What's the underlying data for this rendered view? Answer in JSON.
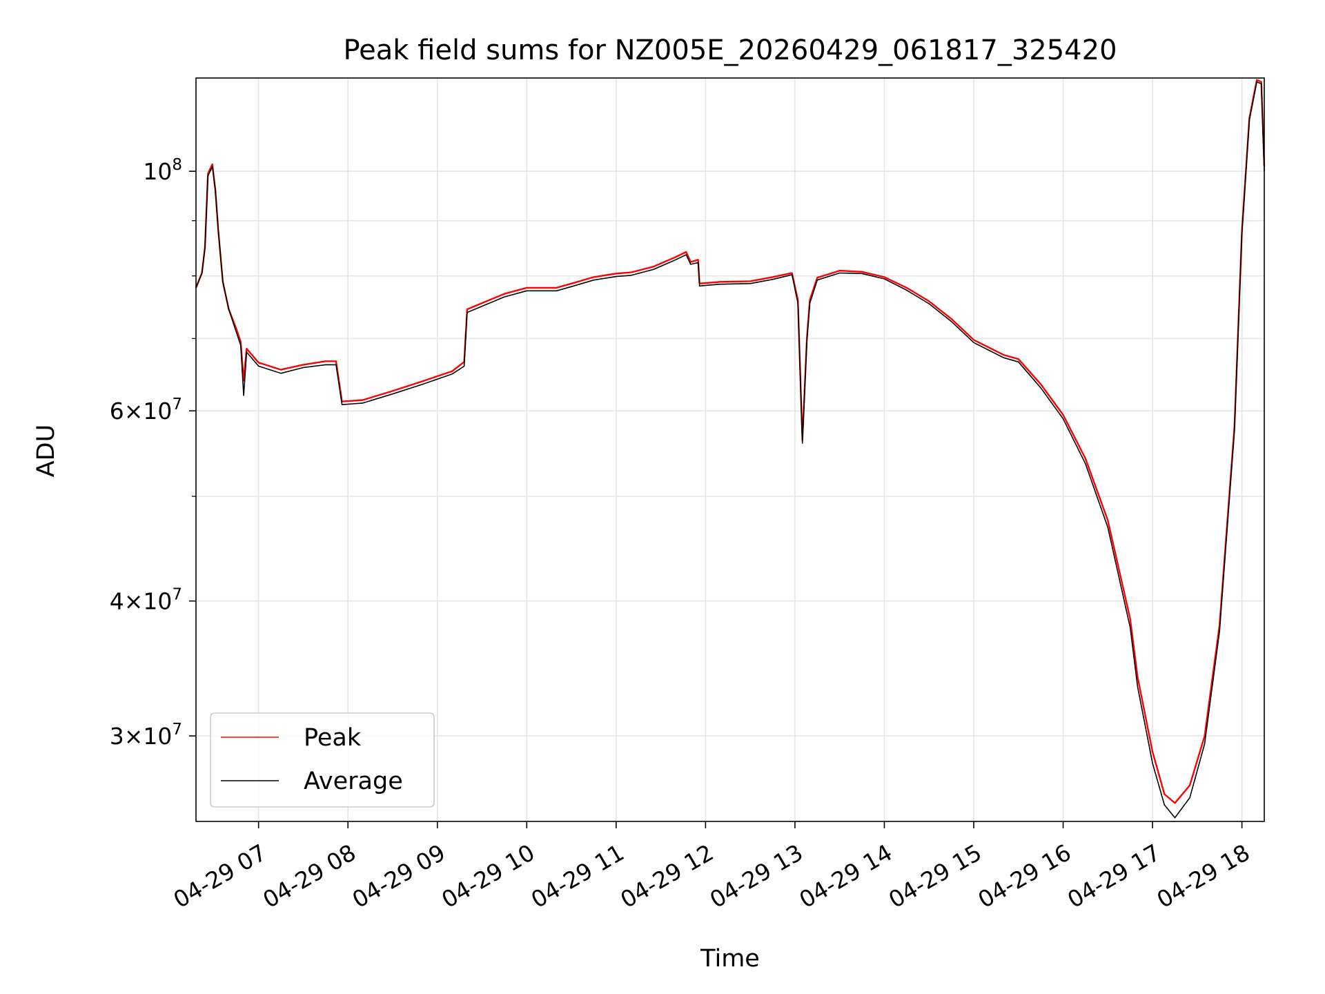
{
  "chart_data": {
    "type": "line",
    "title": "Peak field sums for NZ005E_20260429_061817_325420",
    "xlabel": "Time",
    "ylabel": "ADU",
    "y_scale": "log",
    "grid": true,
    "legend_placement": "lower-left",
    "xlim": [
      "2026-04-29 06:18",
      "2026-04-29 18:15"
    ],
    "ylim": [
      25000000,
      122000000
    ],
    "x_ticks": [
      "04-29 07",
      "04-29 08",
      "04-29 09",
      "04-29 10",
      "04-29 11",
      "04-29 12",
      "04-29 13",
      "04-29 14",
      "04-29 15",
      "04-29 16",
      "04-29 17",
      "04-29 18"
    ],
    "y_ticks": [
      {
        "value": 100000000,
        "mantissa": "",
        "exp": "8"
      },
      {
        "value": 60000000,
        "mantissa": "6",
        "exp": "7"
      },
      {
        "value": 40000000,
        "mantissa": "4",
        "exp": "7"
      },
      {
        "value": 30000000,
        "mantissa": "3",
        "exp": "7"
      }
    ],
    "y_minor_ticks": [
      50000000,
      70000000,
      80000000,
      90000000
    ],
    "series": [
      {
        "name": "Peak",
        "color": "#ff0000",
        "points": [
          [
            "2026-04-29 06:18",
            78000000
          ],
          [
            "2026-04-29 06:22",
            80500000
          ],
          [
            "2026-04-29 06:24",
            85000000
          ],
          [
            "2026-04-29 06:26",
            99500000
          ],
          [
            "2026-04-29 06:29",
            101500000
          ],
          [
            "2026-04-29 06:31",
            96000000
          ],
          [
            "2026-04-29 06:33",
            88000000
          ],
          [
            "2026-04-29 06:36",
            79000000
          ],
          [
            "2026-04-29 06:40",
            74500000
          ],
          [
            "2026-04-29 06:45",
            71500000
          ],
          [
            "2026-04-29 06:48",
            69500000
          ],
          [
            "2026-04-29 06:50",
            64000000
          ],
          [
            "2026-04-29 06:52",
            68500000
          ],
          [
            "2026-04-29 07:00",
            66500000
          ],
          [
            "2026-04-29 07:15",
            65500000
          ],
          [
            "2026-04-29 07:30",
            66200000
          ],
          [
            "2026-04-29 07:45",
            66700000
          ],
          [
            "2026-04-29 07:52",
            66700000
          ],
          [
            "2026-04-29 07:56",
            61200000
          ],
          [
            "2026-04-29 08:10",
            61400000
          ],
          [
            "2026-04-29 08:30",
            62600000
          ],
          [
            "2026-04-29 08:50",
            63900000
          ],
          [
            "2026-04-29 09:10",
            65300000
          ],
          [
            "2026-04-29 09:18",
            66600000
          ],
          [
            "2026-04-29 09:20",
            74500000
          ],
          [
            "2026-04-29 09:30",
            75500000
          ],
          [
            "2026-04-29 09:45",
            77000000
          ],
          [
            "2026-04-29 10:00",
            78000000
          ],
          [
            "2026-04-29 10:20",
            78000000
          ],
          [
            "2026-04-29 10:30",
            78700000
          ],
          [
            "2026-04-29 10:45",
            79800000
          ],
          [
            "2026-04-29 11:00",
            80400000
          ],
          [
            "2026-04-29 11:10",
            80600000
          ],
          [
            "2026-04-29 11:25",
            81600000
          ],
          [
            "2026-04-29 11:40",
            83300000
          ],
          [
            "2026-04-29 11:47",
            84200000
          ],
          [
            "2026-04-29 11:50",
            82400000
          ],
          [
            "2026-04-29 11:55",
            82800000
          ],
          [
            "2026-04-29 11:56",
            78700000
          ],
          [
            "2026-04-29 12:10",
            79000000
          ],
          [
            "2026-04-29 12:30",
            79100000
          ],
          [
            "2026-04-29 12:45",
            79800000
          ],
          [
            "2026-04-29 12:58",
            80500000
          ],
          [
            "2026-04-29 13:02",
            76000000
          ],
          [
            "2026-04-29 13:05",
            56400000
          ],
          [
            "2026-04-29 13:08",
            70000000
          ],
          [
            "2026-04-29 13:10",
            76000000
          ],
          [
            "2026-04-29 13:15",
            79700000
          ],
          [
            "2026-04-29 13:30",
            80900000
          ],
          [
            "2026-04-29 13:45",
            80700000
          ],
          [
            "2026-04-29 14:00",
            79800000
          ],
          [
            "2026-04-29 14:15",
            78000000
          ],
          [
            "2026-04-29 14:30",
            75800000
          ],
          [
            "2026-04-29 14:45",
            73000000
          ],
          [
            "2026-04-29 15:00",
            69800000
          ],
          [
            "2026-04-29 15:20",
            67600000
          ],
          [
            "2026-04-29 15:30",
            67000000
          ],
          [
            "2026-04-29 15:45",
            63500000
          ],
          [
            "2026-04-29 16:00",
            59500000
          ],
          [
            "2026-04-29 16:15",
            54200000
          ],
          [
            "2026-04-29 16:30",
            47500000
          ],
          [
            "2026-04-29 16:45",
            38500000
          ],
          [
            "2026-04-29 16:50",
            34000000
          ],
          [
            "2026-04-29 17:00",
            29000000
          ],
          [
            "2026-04-29 17:08",
            26500000
          ],
          [
            "2026-04-29 17:15",
            26000000
          ],
          [
            "2026-04-29 17:25",
            27000000
          ],
          [
            "2026-04-29 17:35",
            30000000
          ],
          [
            "2026-04-29 17:45",
            38000000
          ],
          [
            "2026-04-29 17:55",
            58000000
          ],
          [
            "2026-04-29 18:00",
            88000000
          ],
          [
            "2026-04-29 18:05",
            112000000
          ],
          [
            "2026-04-29 18:10",
            121500000
          ],
          [
            "2026-04-29 18:13",
            121000000
          ],
          [
            "2026-04-29 18:15",
            101000000
          ]
        ]
      },
      {
        "name": "Average",
        "color": "#000000",
        "points": [
          [
            "2026-04-29 06:18",
            78000000
          ],
          [
            "2026-04-29 06:22",
            80500000
          ],
          [
            "2026-04-29 06:24",
            85000000
          ],
          [
            "2026-04-29 06:26",
            99000000
          ],
          [
            "2026-04-29 06:29",
            101000000
          ],
          [
            "2026-04-29 06:31",
            96000000
          ],
          [
            "2026-04-29 06:33",
            88000000
          ],
          [
            "2026-04-29 06:36",
            79000000
          ],
          [
            "2026-04-29 06:40",
            74500000
          ],
          [
            "2026-04-29 06:45",
            71000000
          ],
          [
            "2026-04-29 06:48",
            69000000
          ],
          [
            "2026-04-29 06:50",
            62000000
          ],
          [
            "2026-04-29 06:52",
            68000000
          ],
          [
            "2026-04-29 07:00",
            66000000
          ],
          [
            "2026-04-29 07:15",
            65000000
          ],
          [
            "2026-04-29 07:30",
            65800000
          ],
          [
            "2026-04-29 07:45",
            66200000
          ],
          [
            "2026-04-29 07:52",
            66200000
          ],
          [
            "2026-04-29 07:56",
            60800000
          ],
          [
            "2026-04-29 08:10",
            61000000
          ],
          [
            "2026-04-29 08:30",
            62200000
          ],
          [
            "2026-04-29 08:50",
            63500000
          ],
          [
            "2026-04-29 09:10",
            64900000
          ],
          [
            "2026-04-29 09:18",
            66000000
          ],
          [
            "2026-04-29 09:20",
            74000000
          ],
          [
            "2026-04-29 09:30",
            75000000
          ],
          [
            "2026-04-29 09:45",
            76500000
          ],
          [
            "2026-04-29 10:00",
            77500000
          ],
          [
            "2026-04-29 10:20",
            77500000
          ],
          [
            "2026-04-29 10:30",
            78200000
          ],
          [
            "2026-04-29 10:45",
            79300000
          ],
          [
            "2026-04-29 11:00",
            79900000
          ],
          [
            "2026-04-29 11:10",
            80100000
          ],
          [
            "2026-04-29 11:25",
            81100000
          ],
          [
            "2026-04-29 11:40",
            82800000
          ],
          [
            "2026-04-29 11:47",
            83700000
          ],
          [
            "2026-04-29 11:50",
            82000000
          ],
          [
            "2026-04-29 11:55",
            82300000
          ],
          [
            "2026-04-29 11:56",
            78300000
          ],
          [
            "2026-04-29 12:10",
            78600000
          ],
          [
            "2026-04-29 12:30",
            78700000
          ],
          [
            "2026-04-29 12:45",
            79400000
          ],
          [
            "2026-04-29 12:58",
            80200000
          ],
          [
            "2026-04-29 13:02",
            75500000
          ],
          [
            "2026-04-29 13:05",
            56000000
          ],
          [
            "2026-04-29 13:08",
            69500000
          ],
          [
            "2026-04-29 13:10",
            75500000
          ],
          [
            "2026-04-29 13:15",
            79300000
          ],
          [
            "2026-04-29 13:30",
            80500000
          ],
          [
            "2026-04-29 13:45",
            80400000
          ],
          [
            "2026-04-29 14:00",
            79500000
          ],
          [
            "2026-04-29 14:15",
            77600000
          ],
          [
            "2026-04-29 14:30",
            75400000
          ],
          [
            "2026-04-29 14:45",
            72600000
          ],
          [
            "2026-04-29 15:00",
            69400000
          ],
          [
            "2026-04-29 15:20",
            67200000
          ],
          [
            "2026-04-29 15:30",
            66600000
          ],
          [
            "2026-04-29 15:45",
            63000000
          ],
          [
            "2026-04-29 16:00",
            59000000
          ],
          [
            "2026-04-29 16:15",
            53600000
          ],
          [
            "2026-04-29 16:30",
            46800000
          ],
          [
            "2026-04-29 16:45",
            37800000
          ],
          [
            "2026-04-29 16:50",
            33300000
          ],
          [
            "2026-04-29 17:00",
            28300000
          ],
          [
            "2026-04-29 17:08",
            25900000
          ],
          [
            "2026-04-29 17:15",
            25200000
          ],
          [
            "2026-04-29 17:25",
            26300000
          ],
          [
            "2026-04-29 17:35",
            29500000
          ],
          [
            "2026-04-29 17:45",
            37500000
          ],
          [
            "2026-04-29 17:55",
            57500000
          ],
          [
            "2026-04-29 18:00",
            87500000
          ],
          [
            "2026-04-29 18:05",
            111500000
          ],
          [
            "2026-04-29 18:10",
            121000000
          ],
          [
            "2026-04-29 18:13",
            120500000
          ],
          [
            "2026-04-29 18:15",
            100000000
          ]
        ]
      }
    ]
  }
}
